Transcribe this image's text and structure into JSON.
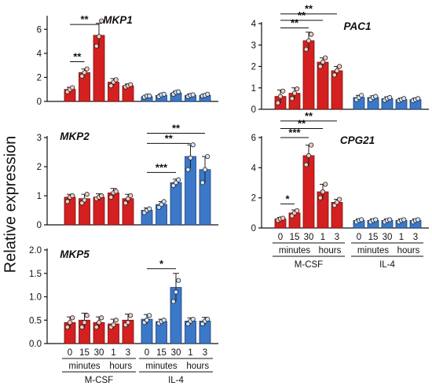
{
  "y_title": "Relative expression",
  "colors": {
    "red": "#d42020",
    "red_border": "#7a0d0d",
    "blue": "#3c78c8",
    "blue_border": "#173f75",
    "axis": "#111111"
  },
  "chart_data": [
    {
      "type": "bar",
      "title": "MKP1",
      "ylim": [
        0,
        7
      ],
      "yticks": [
        0,
        2,
        4,
        6
      ],
      "groups": [
        {
          "name": "M-CSF",
          "color": "red",
          "values": [
            1.0,
            2.4,
            5.5,
            1.6,
            1.3
          ],
          "errors": [
            0.18,
            0.3,
            1.0,
            0.3,
            0.15
          ],
          "points": [
            [
              0.8,
              1.0,
              1.15
            ],
            [
              2.1,
              2.4,
              2.7
            ],
            [
              4.6,
              5.4,
              6.7
            ],
            [
              1.3,
              1.6,
              1.8
            ],
            [
              1.2,
              1.3,
              1.4
            ]
          ]
        },
        {
          "name": "IL-4",
          "color": "blue",
          "values": [
            0.4,
            0.5,
            0.7,
            0.5,
            0.5
          ],
          "errors": [
            0.1,
            0.12,
            0.15,
            0.12,
            0.12
          ],
          "points": [
            [
              0.35,
              0.45,
              0.45
            ],
            [
              0.4,
              0.55,
              0.6
            ],
            [
              0.6,
              0.75,
              0.8
            ],
            [
              0.4,
              0.5,
              0.55
            ],
            [
              0.45,
              0.5,
              0.6
            ]
          ]
        }
      ],
      "significance": [
        {
          "text": "**",
          "from": 0,
          "to": 1,
          "y": 3.3
        },
        {
          "text": "**",
          "from": 0,
          "to": 2,
          "y": 6.4
        }
      ]
    },
    {
      "type": "bar",
      "title": "MKP2",
      "ylim": [
        0,
        3
      ],
      "yticks": [
        0,
        1,
        2,
        3
      ],
      "groups": [
        {
          "name": "M-CSF",
          "color": "red",
          "values": [
            0.95,
            0.9,
            0.95,
            1.1,
            0.9
          ],
          "errors": [
            0.1,
            0.15,
            0.12,
            0.15,
            0.15
          ],
          "points": [
            [
              0.8,
              0.95,
              1.0
            ],
            [
              0.75,
              0.85,
              1.05
            ],
            [
              0.9,
              0.95,
              1.0
            ],
            [
              0.95,
              1.1,
              1.15
            ],
            [
              0.75,
              0.9,
              1.0
            ]
          ]
        },
        {
          "name": "IL-4",
          "color": "blue",
          "values": [
            0.5,
            0.7,
            1.45,
            2.35,
            1.9
          ],
          "errors": [
            0.08,
            0.1,
            0.12,
            0.4,
            0.45
          ],
          "points": [
            [
              0.42,
              0.5,
              0.55
            ],
            [
              0.6,
              0.7,
              0.8
            ],
            [
              1.35,
              1.45,
              1.55
            ],
            [
              1.9,
              2.3,
              2.75
            ],
            [
              1.45,
              1.9,
              2.35
            ]
          ]
        }
      ],
      "significance": [
        {
          "text": "***",
          "from": 5,
          "to": 7,
          "y": 1.8
        },
        {
          "text": "**",
          "from": 5,
          "to": 8,
          "y": 2.8
        },
        {
          "text": "**",
          "from": 5,
          "to": 9,
          "y": 3.15
        }
      ]
    },
    {
      "type": "bar",
      "title": "MKP5",
      "ylim": [
        0,
        2.0
      ],
      "yticks": [
        0.0,
        0.5,
        1.0,
        1.5,
        2.0
      ],
      "ytick_labels": [
        "0.0",
        "0.5",
        "1.0",
        "1.5",
        "2.0"
      ],
      "groups": [
        {
          "name": "M-CSF",
          "color": "red",
          "values": [
            0.45,
            0.5,
            0.45,
            0.42,
            0.5
          ],
          "errors": [
            0.12,
            0.15,
            0.12,
            0.1,
            0.13
          ],
          "points": [
            [
              0.35,
              0.45,
              0.55
            ],
            [
              0.35,
              0.45,
              0.6
            ],
            [
              0.35,
              0.45,
              0.55
            ],
            [
              0.35,
              0.4,
              0.5
            ],
            [
              0.4,
              0.45,
              0.6
            ]
          ]
        },
        {
          "name": "IL-4",
          "color": "blue",
          "values": [
            0.52,
            0.47,
            1.2,
            0.48,
            0.48
          ],
          "errors": [
            0.1,
            0.05,
            0.3,
            0.07,
            0.08
          ],
          "points": [
            [
              0.45,
              0.5,
              0.6
            ],
            [
              0.43,
              0.47,
              0.5
            ],
            [
              0.9,
              1.1,
              1.35
            ],
            [
              0.42,
              0.48,
              0.52
            ],
            [
              0.42,
              0.48,
              0.52
            ]
          ]
        }
      ],
      "significance": [
        {
          "text": "*",
          "from": 5,
          "to": 7,
          "y": 1.6
        }
      ]
    },
    {
      "type": "bar",
      "title": "PAC1",
      "ylim": [
        0,
        4
      ],
      "yticks": [
        0,
        1,
        2,
        3,
        4
      ],
      "groups": [
        {
          "name": "M-CSF",
          "color": "red",
          "values": [
            0.6,
            0.75,
            3.2,
            2.2,
            1.8
          ],
          "errors": [
            0.3,
            0.25,
            0.4,
            0.2,
            0.2
          ],
          "points": [
            [
              0.3,
              0.6,
              0.85
            ],
            [
              0.5,
              0.75,
              0.95
            ],
            [
              2.8,
              3.2,
              3.5
            ],
            [
              2.0,
              2.2,
              2.4
            ],
            [
              1.6,
              1.8,
              2.0
            ]
          ]
        },
        {
          "name": "IL-4",
          "color": "blue",
          "values": [
            0.55,
            0.55,
            0.5,
            0.45,
            0.45
          ],
          "errors": [
            0.1,
            0.08,
            0.08,
            0.07,
            0.07
          ],
          "points": [
            [
              0.45,
              0.55,
              0.65
            ],
            [
              0.45,
              0.55,
              0.6
            ],
            [
              0.42,
              0.5,
              0.55
            ],
            [
              0.4,
              0.45,
              0.5
            ],
            [
              0.4,
              0.45,
              0.5
            ]
          ]
        }
      ],
      "significance": [
        {
          "text": "**",
          "from": 0,
          "to": 2,
          "y": 3.8
        },
        {
          "text": "**",
          "from": 0,
          "to": 3,
          "y": 4.15
        },
        {
          "text": "**",
          "from": 0,
          "to": 4,
          "y": 4.45
        }
      ]
    },
    {
      "type": "bar",
      "title": "CPG21",
      "ylim": [
        0,
        6
      ],
      "yticks": [
        0,
        2,
        4,
        6
      ],
      "groups": [
        {
          "name": "M-CSF",
          "color": "red",
          "values": [
            0.6,
            1.0,
            4.8,
            2.4,
            1.7
          ],
          "errors": [
            0.1,
            0.2,
            0.7,
            0.5,
            0.2
          ],
          "points": [
            [
              0.5,
              0.6,
              0.65
            ],
            [
              0.8,
              1.0,
              1.15
            ],
            [
              4.2,
              4.8,
              5.5
            ],
            [
              2.0,
              2.4,
              2.9
            ],
            [
              1.5,
              1.7,
              1.9
            ]
          ]
        },
        {
          "name": "IL-4",
          "color": "blue",
          "values": [
            0.5,
            0.5,
            0.5,
            0.5,
            0.5
          ],
          "errors": [
            0.1,
            0.1,
            0.1,
            0.1,
            0.1
          ],
          "points": [
            [
              0.4,
              0.5,
              0.55
            ],
            [
              0.4,
              0.5,
              0.55
            ],
            [
              0.4,
              0.5,
              0.55
            ],
            [
              0.4,
              0.5,
              0.55
            ],
            [
              0.4,
              0.5,
              0.55
            ]
          ]
        }
      ],
      "significance": [
        {
          "text": "*",
          "from": 0,
          "to": 1,
          "y": 1.6
        },
        {
          "text": "***",
          "from": 0,
          "to": 2,
          "y": 6.0
        },
        {
          "text": "**",
          "from": 0,
          "to": 3,
          "y": 6.6
        },
        {
          "text": "**",
          "from": 0,
          "to": 4,
          "y": 7.1
        }
      ]
    }
  ],
  "x_axis": {
    "time_labels": [
      "0",
      "15",
      "30",
      "1",
      "3"
    ],
    "unit_minutes": "minutes",
    "unit_hours": "hours",
    "group_labels": [
      "M-CSF",
      "IL-4"
    ]
  }
}
